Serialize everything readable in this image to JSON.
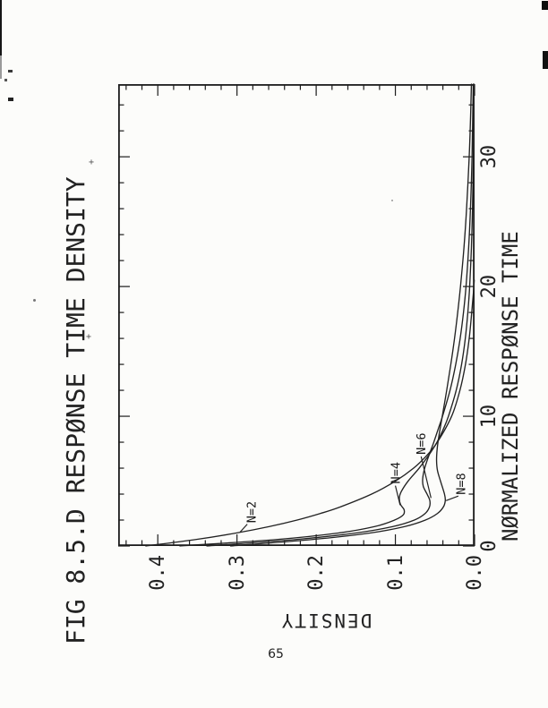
{
  "page": {
    "number": "65"
  },
  "chart_data": {
    "type": "line",
    "title": "FIG 8.5.D RESPØNSE TIME DENSITY",
    "xlabel": "NØRMALIZED RESPØNSE TIME",
    "ylabel": "DENSITY",
    "xlim": [
      0,
      35.6
    ],
    "ylim": [
      0,
      0.45
    ],
    "grid": false,
    "legend": "inline curve labels with leader lines",
    "orientation": "figure printed rotated 90 degrees counterclockwise on page",
    "x_ticks_major": [
      {
        "v": 0,
        "label": "0"
      },
      {
        "v": 10,
        "label": "10"
      },
      {
        "v": 20,
        "label": "20"
      },
      {
        "v": 30,
        "label": "30"
      }
    ],
    "x_tick_minor_step": 2,
    "y_ticks_major": [
      {
        "v": 0.0,
        "label": "0.0"
      },
      {
        "v": 0.1,
        "label": "0.1"
      },
      {
        "v": 0.2,
        "label": "0.2"
      },
      {
        "v": 0.3,
        "label": "0.3"
      },
      {
        "v": 0.4,
        "label": "0.4"
      }
    ],
    "y_tick_minor_step": 0.02,
    "series": [
      {
        "name": "N=2",
        "points": [
          [
            0,
            0.415
          ],
          [
            0.5,
            0.352
          ],
          [
            1,
            0.301
          ],
          [
            1.5,
            0.259
          ],
          [
            2,
            0.224
          ],
          [
            2.5,
            0.195
          ],
          [
            3,
            0.17
          ],
          [
            4,
            0.13
          ],
          [
            5,
            0.1
          ],
          [
            6,
            0.077
          ],
          [
            7,
            0.06
          ],
          [
            8,
            0.047
          ],
          [
            10,
            0.029
          ],
          [
            12,
            0.0185
          ],
          [
            14,
            0.0115
          ],
          [
            16,
            0.0068
          ],
          [
            18,
            0.0036
          ],
          [
            19.5,
            0.0015
          ],
          [
            20.5,
            0.0004
          ]
        ]
      },
      {
        "name": "N=4",
        "points": [
          [
            0,
            0.372
          ],
          [
            0.5,
            0.25
          ],
          [
            1,
            0.172
          ],
          [
            1.5,
            0.126
          ],
          [
            2,
            0.101
          ],
          [
            2.4,
            0.09
          ],
          [
            2.8,
            0.089
          ],
          [
            3.2,
            0.0935
          ],
          [
            3.7,
            0.095
          ],
          [
            4.2,
            0.0925
          ],
          [
            5,
            0.084
          ],
          [
            6,
            0.07
          ],
          [
            7,
            0.0578
          ],
          [
            8,
            0.0475
          ],
          [
            9,
            0.0395
          ],
          [
            10,
            0.033
          ],
          [
            12,
            0.0232
          ],
          [
            14,
            0.0164
          ],
          [
            16,
            0.0117
          ],
          [
            18,
            0.0085
          ],
          [
            20,
            0.0062
          ],
          [
            23,
            0.004
          ],
          [
            26,
            0.0026
          ],
          [
            30,
            0.0015
          ],
          [
            35.6,
            0.0008
          ]
        ]
      },
      {
        "name": "N=6",
        "points": [
          [
            0,
            0.338
          ],
          [
            0.5,
            0.226
          ],
          [
            1,
            0.15
          ],
          [
            1.5,
            0.103
          ],
          [
            2,
            0.076
          ],
          [
            2.5,
            0.0625
          ],
          [
            3,
            0.057
          ],
          [
            3.5,
            0.0565
          ],
          [
            4,
            0.06
          ],
          [
            4.6,
            0.0648
          ],
          [
            5.2,
            0.0655
          ],
          [
            6,
            0.063
          ],
          [
            7,
            0.0575
          ],
          [
            8,
            0.0515
          ],
          [
            9,
            0.046
          ],
          [
            10,
            0.0405
          ],
          [
            12,
            0.031
          ],
          [
            14,
            0.0238
          ],
          [
            16,
            0.0182
          ],
          [
            18,
            0.014
          ],
          [
            20,
            0.0108
          ],
          [
            23,
            0.0075
          ],
          [
            26,
            0.0052
          ],
          [
            30,
            0.0032
          ],
          [
            35.6,
            0.0017
          ]
        ]
      },
      {
        "name": "N=8",
        "points": [
          [
            0,
            0.308
          ],
          [
            0.5,
            0.205
          ],
          [
            1,
            0.132
          ],
          [
            1.5,
            0.088
          ],
          [
            2,
            0.062
          ],
          [
            2.5,
            0.047
          ],
          [
            3,
            0.0395
          ],
          [
            3.5,
            0.037
          ],
          [
            4,
            0.038
          ],
          [
            5,
            0.043
          ],
          [
            5.8,
            0.0468
          ],
          [
            6.6,
            0.048
          ],
          [
            7.5,
            0.0472
          ],
          [
            8.5,
            0.045
          ],
          [
            10,
            0.0408
          ],
          [
            12,
            0.0352
          ],
          [
            14,
            0.03
          ],
          [
            16,
            0.0253
          ],
          [
            18,
            0.0213
          ],
          [
            20,
            0.0178
          ],
          [
            23,
            0.0134
          ],
          [
            26,
            0.0101
          ],
          [
            30,
            0.0068
          ],
          [
            33,
            0.0051
          ],
          [
            35.6,
            0.004
          ]
        ]
      }
    ],
    "annotations": [
      {
        "label": "N=2",
        "text_at": [
          1.78,
          0.281
        ],
        "leader": [
          [
            1.68,
            0.287
          ],
          [
            1.08,
            0.296
          ]
        ]
      },
      {
        "label": "N=4",
        "text_at": [
          4.8,
          0.099
        ],
        "leader": [
          [
            4.65,
            0.1
          ],
          [
            3.15,
            0.094
          ]
        ]
      },
      {
        "label": "N=6",
        "text_at": [
          7.05,
          0.0665
        ],
        "leader": [
          [
            6.9,
            0.0675
          ],
          [
            3.7,
            0.055
          ]
        ]
      },
      {
        "label": "N=8",
        "text_at": [
          3.95,
          0.0165
        ],
        "leader": [
          [
            3.85,
            0.0205
          ],
          [
            3.5,
            0.036
          ]
        ]
      }
    ]
  },
  "artifacts": {
    "stray_plus_1": "+",
    "stray_plus_2": "+"
  }
}
